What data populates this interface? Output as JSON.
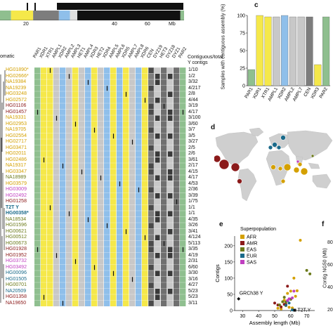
{
  "panels": {
    "c": "c",
    "d": "d",
    "e": "e",
    "f": "f"
  },
  "top_track": {
    "ticks": [
      "20",
      "40",
      "60"
    ],
    "unit": "Mb",
    "segments": [
      {
        "start": 0.0,
        "end": 0.06,
        "color": "#8fbf8f"
      },
      {
        "start": 0.06,
        "end": 0.18,
        "color": "#f5e84a"
      },
      {
        "start": 0.18,
        "end": 0.32,
        "color": "#7d7d7d"
      },
      {
        "start": 0.32,
        "end": 0.38,
        "color": "#8fbfea"
      },
      {
        "start": 0.38,
        "end": 0.42,
        "color": "#e0e0e0"
      },
      {
        "start": 0.42,
        "end": 0.98,
        "color": "#111111"
      },
      {
        "start": 0.98,
        "end": 1.0,
        "color": "#8fbf8f"
      }
    ]
  },
  "heatmap": {
    "left_label": "omatic",
    "header_right": "Contiguous/total",
    "header_right2": "Y contigs",
    "columns": [
      "PAR1",
      "XDR1",
      "XTR1",
      "AMPL1",
      "XDR2",
      "AMPL2",
      "AMPL3",
      "HET1",
      "AMPL4",
      "XDR3",
      "HET2",
      "XDR4",
      "AMPL5",
      "AMPL6",
      "XDR5",
      "AMPL7",
      "AMPL8",
      "XDR6",
      "CEN",
      "DYZ19",
      "HET3",
      "DYZ18",
      "DYZ1",
      "PAR2"
    ],
    "column_colors": [
      "#8fbf8f",
      "#f5e84a",
      "#f5e84a",
      "#c8c8c8",
      "#8fbfea",
      "#c8c8c8",
      "#f5e84a",
      "#c8c8c8",
      "#8fbfea",
      "#f5e84a",
      "#c8c8c8",
      "#8fbfea",
      "#f5e84a",
      "#8fbfea",
      "#f5e84a",
      "#c8c8c8",
      "#8fbfea",
      "#f5e84a",
      "#7d7d7d",
      "#c8c8c8",
      "#6f6f6f",
      "#c8c8c8",
      "#6f6f6f",
      "#8fbf8f"
    ],
    "rows": [
      {
        "id": "HG01890*",
        "color": "#d4a000",
        "count": "1/10"
      },
      {
        "id": "HG02666*",
        "color": "#d4a000",
        "count": "1/2"
      },
      {
        "id": "NA19384",
        "color": "#d4a000",
        "count": "3/32"
      },
      {
        "id": "NA19239",
        "color": "#d4a000",
        "count": "4/217"
      },
      {
        "id": "HG03248",
        "color": "#d4a000",
        "count": "2/8"
      },
      {
        "id": "HG02572",
        "color": "#d4a000",
        "count": "4/44"
      },
      {
        "id": "HG01106",
        "color": "#8b1a1a",
        "count": "3/19"
      },
      {
        "id": "HG01457",
        "color": "#8b1a1a",
        "count": "4/17"
      },
      {
        "id": "NA19331",
        "color": "#d4a000",
        "count": "3/100"
      },
      {
        "id": "HG02953",
        "color": "#d4a000",
        "count": "3/60"
      },
      {
        "id": "NA19705",
        "color": "#d4a000",
        "count": "3/7"
      },
      {
        "id": "HG02554",
        "color": "#d4a000",
        "count": "3/5"
      },
      {
        "id": "HG02717",
        "color": "#d4a000",
        "count": "3/27"
      },
      {
        "id": "HG03471",
        "color": "#d4a000",
        "count": "2/5"
      },
      {
        "id": "HG02011",
        "color": "#d4a000",
        "count": "2/6"
      },
      {
        "id": "HG02486",
        "color": "#d4a000",
        "count": "3/61"
      },
      {
        "id": "NA19317",
        "color": "#d4a000",
        "count": "2/17"
      },
      {
        "id": "HG03347",
        "color": "#d4a000",
        "count": "4/15"
      },
      {
        "id": "NA18989",
        "color": "#6b7a1a",
        "count": "4/17"
      },
      {
        "id": "HG03579",
        "color": "#d4a000",
        "count": "4/53"
      },
      {
        "id": "HG03009",
        "color": "#c040c0",
        "count": "2/36"
      },
      {
        "id": "HG02492",
        "color": "#c040c0",
        "count": "3/39"
      },
      {
        "id": "HG01258",
        "color": "#8b1a1a",
        "count": "1/75"
      },
      {
        "id": "T2T Y",
        "color": "#1a6a8a",
        "count": "1/1"
      },
      {
        "id": "HG00358*",
        "color": "#1a6a8a",
        "count": "1/1"
      },
      {
        "id": "NA18534",
        "color": "#6b7a1a",
        "count": "4/35"
      },
      {
        "id": "HG01596",
        "color": "#6b7a1a",
        "count": "3/26"
      },
      {
        "id": "HG00621",
        "color": "#6b7a1a",
        "count": "3/41"
      },
      {
        "id": "HG00512",
        "color": "#6b7a1a",
        "count": "4/124"
      },
      {
        "id": "HG00673",
        "color": "#6b7a1a",
        "count": "5/113"
      },
      {
        "id": "HG01928",
        "color": "#8b1a1a",
        "count": "3/35"
      },
      {
        "id": "HG01952",
        "color": "#8b1a1a",
        "count": "4/19"
      },
      {
        "id": "HG03732",
        "color": "#c040c0",
        "count": "2/31"
      },
      {
        "id": "HG03492",
        "color": "#c040c0",
        "count": "6/60"
      },
      {
        "id": "HG00096",
        "color": "#1a6a8a",
        "count": "3/30"
      },
      {
        "id": "HG01505",
        "color": "#1a6a8a",
        "count": "3/16"
      },
      {
        "id": "HG00701",
        "color": "#6b7a1a",
        "count": "4/27"
      },
      {
        "id": "NA20509",
        "color": "#1a6a8a",
        "count": "5/23"
      },
      {
        "id": "HG01358",
        "color": "#8b1a1a",
        "count": "5/23"
      },
      {
        "id": "NA19650",
        "color": "#8b1a1a",
        "count": "3/11"
      }
    ]
  },
  "chart_data": [
    {
      "type": "bar",
      "panel": "c",
      "ylabel": "Samples with contiguous assembly (%)",
      "yticks": [
        "0",
        "25",
        "50",
        "75",
        "100"
      ],
      "ylim": [
        0,
        100
      ],
      "categories": [
        "PAR1",
        "XDR1",
        "XTR1",
        "AMPL1",
        "XDR2",
        "AMPL2",
        "AMPL7",
        "CEN",
        "XDR3",
        "PAR2"
      ],
      "values": [
        23,
        100,
        98,
        98,
        100,
        98,
        98,
        98,
        30,
        98
      ],
      "colors": [
        "#8fbf8f",
        "#f5e84a",
        "#f5e84a",
        "#c8c8c8",
        "#8fbfea",
        "#c8c8c8",
        "#c8c8c8",
        "#7d7d7d",
        "#f5e84a",
        "#8fbf8f"
      ]
    },
    {
      "type": "scatter",
      "panel": "e",
      "xlabel": "Assembly length (Mb)",
      "ylabel": "Contigs",
      "xticks": [
        "30",
        "40",
        "50",
        "60",
        "70"
      ],
      "yticks": [
        "0",
        "50",
        "100",
        "150",
        "200"
      ],
      "xlim": [
        25,
        75
      ],
      "ylim": [
        0,
        230
      ],
      "legend_title": "Superpopulation",
      "legend": [
        {
          "label": "AFR",
          "color": "#d4a000"
        },
        {
          "label": "AMR",
          "color": "#8b1a1a"
        },
        {
          "label": "EAS",
          "color": "#6b7a1a"
        },
        {
          "label": "EUR",
          "color": "#1a6a8a"
        },
        {
          "label": "SAS",
          "color": "#c040c0"
        }
      ],
      "annotations": [
        {
          "label": "GRCh38 Y",
          "x": 27.5,
          "y": 36
        },
        {
          "label": "T2T Y",
          "x": 62.5,
          "y": 1
        }
      ],
      "series": [
        {
          "name": "AFR",
          "color": "#d4a000",
          "points": [
            [
              66,
              217
            ],
            [
              62,
              100
            ],
            [
              60,
              60
            ],
            [
              64,
              61
            ],
            [
              56,
              32
            ],
            [
              58,
              53
            ],
            [
              55,
              27
            ],
            [
              53,
              17
            ],
            [
              57,
              15
            ],
            [
              59,
              10
            ],
            [
              61,
              8
            ],
            [
              54,
              5
            ],
            [
              63,
              44
            ],
            [
              52,
              7
            ]
          ]
        },
        {
          "name": "AMR",
          "color": "#8b1a1a",
          "points": [
            [
              58,
              75
            ],
            [
              56,
              19
            ],
            [
              60,
              35
            ],
            [
              52,
              17
            ],
            [
              50,
              23
            ],
            [
              54,
              11
            ],
            [
              57,
              19
            ]
          ]
        },
        {
          "name": "EAS",
          "color": "#6b7a1a",
          "points": [
            [
              70,
              124
            ],
            [
              72,
              113
            ],
            [
              60,
              35
            ],
            [
              57,
              26
            ],
            [
              56,
              41
            ],
            [
              55,
              27
            ],
            [
              53,
              17
            ]
          ]
        },
        {
          "name": "EUR",
          "color": "#1a6a8a",
          "points": [
            [
              58,
              30
            ],
            [
              57,
              16
            ],
            [
              59,
              23
            ],
            [
              61,
              2
            ]
          ]
        },
        {
          "name": "SAS",
          "color": "#c040c0",
          "points": [
            [
              59,
              36
            ],
            [
              61,
              39
            ],
            [
              58,
              31
            ],
            [
              62,
              60
            ]
          ]
        }
      ]
    }
  ],
  "panel_f": {
    "ylabel": "Contig NG50 (Mb)",
    "yticks": [
      "80",
      "60",
      "40",
      "20"
    ]
  }
}
